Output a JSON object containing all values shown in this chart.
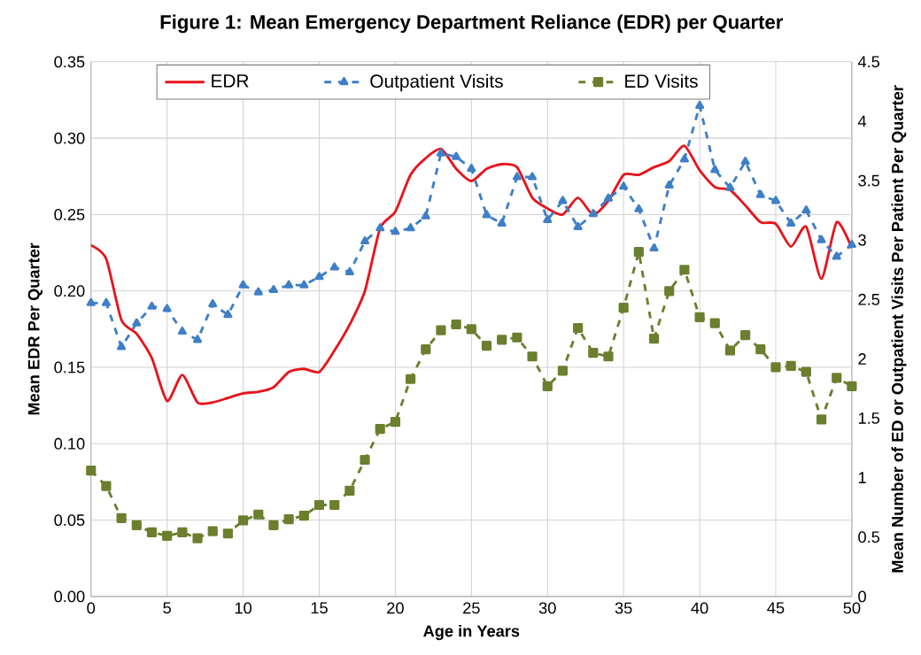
{
  "chart_data": {
    "type": "line",
    "title": "Figure 1: Mean Emergency Department Reliance (EDR) per Quarter",
    "xlabel": "Age in Years",
    "ylabel": "Mean EDR Per Quarter",
    "y2label": "Mean Number of ED or Outpatient Visits Per Patient Per Quarter",
    "x": [
      0,
      1,
      2,
      3,
      4,
      5,
      6,
      7,
      8,
      9,
      10,
      11,
      12,
      13,
      14,
      15,
      16,
      17,
      18,
      19,
      20,
      21,
      22,
      23,
      24,
      25,
      26,
      27,
      28,
      29,
      30,
      31,
      32,
      33,
      34,
      35,
      36,
      37,
      38,
      39,
      40,
      41,
      42,
      43,
      44,
      45,
      46,
      47,
      48,
      49,
      50
    ],
    "series": [
      {
        "name": "EDR",
        "color": "#e8141c",
        "marker": "none",
        "line_style": "solid",
        "values": [
          0.23,
          0.221,
          0.181,
          0.172,
          0.156,
          0.128,
          0.145,
          0.127,
          0.127,
          0.13,
          0.133,
          0.134,
          0.137,
          0.147,
          0.149,
          0.147,
          0.161,
          0.178,
          0.2,
          0.241,
          0.252,
          0.276,
          0.287,
          0.293,
          0.28,
          0.272,
          0.28,
          0.283,
          0.281,
          0.261,
          0.254,
          0.25,
          0.261,
          0.25,
          0.259,
          0.276,
          0.276,
          0.281,
          0.285,
          0.295,
          0.279,
          0.268,
          0.266,
          0.256,
          0.245,
          0.244,
          0.229,
          0.242,
          0.208,
          0.245,
          0.228
        ]
      },
      {
        "name": "Outpatient Visits",
        "color": "#3f7fc7",
        "marker": "triangle",
        "line_style": "dashed",
        "axis": "y2",
        "values": [
          2.47,
          2.47,
          2.1,
          2.3,
          2.44,
          2.42,
          2.23,
          2.16,
          2.46,
          2.37,
          2.62,
          2.56,
          2.58,
          2.62,
          2.62,
          2.69,
          2.77,
          2.73,
          2.99,
          3.1,
          3.07,
          3.1,
          3.2,
          3.73,
          3.7,
          3.6,
          3.21,
          3.14,
          3.53,
          3.53,
          3.17,
          3.33,
          3.11,
          3.22,
          3.35,
          3.45,
          3.26,
          2.93,
          3.46,
          3.68,
          4.13,
          3.59,
          3.44,
          3.66,
          3.38,
          3.33,
          3.14,
          3.25,
          3.0,
          2.86,
          2.96
        ]
      },
      {
        "name": "ED Visits",
        "color": "#6b7f2e",
        "marker": "square",
        "line_style": "dashed",
        "axis": "y2",
        "values": [
          1.06,
          0.93,
          0.66,
          0.6,
          0.54,
          0.51,
          0.54,
          0.49,
          0.55,
          0.53,
          0.64,
          0.69,
          0.6,
          0.65,
          0.68,
          0.77,
          0.77,
          0.89,
          1.15,
          1.41,
          1.47,
          1.83,
          2.08,
          2.24,
          2.29,
          2.25,
          2.11,
          2.16,
          2.18,
          2.02,
          1.77,
          1.9,
          2.26,
          2.05,
          2.02,
          2.43,
          2.9,
          2.17,
          2.57,
          2.75,
          2.35,
          2.3,
          2.07,
          2.2,
          2.08,
          1.93,
          1.94,
          1.89,
          1.49,
          1.84,
          1.77
        ]
      }
    ],
    "xlim": [
      0,
      50
    ],
    "xticks": [
      0,
      5,
      10,
      15,
      20,
      25,
      30,
      35,
      40,
      45,
      50
    ],
    "ylim": [
      0,
      0.35
    ],
    "yticks": [
      {
        "value": 0,
        "label": "0.00"
      },
      {
        "value": 0.05,
        "label": "0.05"
      },
      {
        "value": 0.1,
        "label": "0.10"
      },
      {
        "value": 0.15,
        "label": "0.15"
      },
      {
        "value": 0.2,
        "label": "0.20"
      },
      {
        "value": 0.25,
        "label": "0.25"
      },
      {
        "value": 0.3,
        "label": "0.30"
      },
      {
        "value": 0.35,
        "label": "0.35"
      }
    ],
    "y2lim": [
      0,
      4.5
    ],
    "y2ticks": [
      0,
      0.5,
      1,
      1.5,
      2,
      2.5,
      3,
      3.5,
      4,
      4.5
    ],
    "grid": true,
    "legend": "top"
  }
}
